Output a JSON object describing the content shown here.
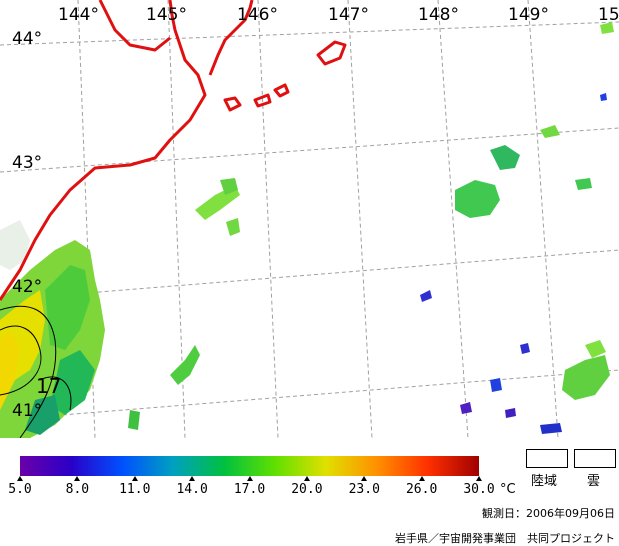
{
  "map": {
    "lon_labels": [
      "144°",
      "145°",
      "146°",
      "147°",
      "148°",
      "149°",
      "15"
    ],
    "lat_labels": [
      "44°",
      "43°",
      "42°",
      "41°"
    ],
    "contour_label": "17"
  },
  "colorbar": {
    "ticks": [
      "5.0",
      "8.0",
      "11.0",
      "14.0",
      "17.0",
      "20.0",
      "23.0",
      "26.0",
      "30.0"
    ],
    "unit": "°C",
    "colors": [
      "#6a00a8",
      "#2a00c8",
      "#0050ff",
      "#00a0c0",
      "#00c040",
      "#60e000",
      "#e0e000",
      "#ff9000",
      "#ff3000",
      "#a00000"
    ]
  },
  "legend": {
    "land_label": "陸域",
    "cloud_label": "雲"
  },
  "footer": {
    "observation_date": "観測日：2006年09月06日",
    "credit": "岩手県／宇宙開発事業団　共同プロジェクト"
  }
}
